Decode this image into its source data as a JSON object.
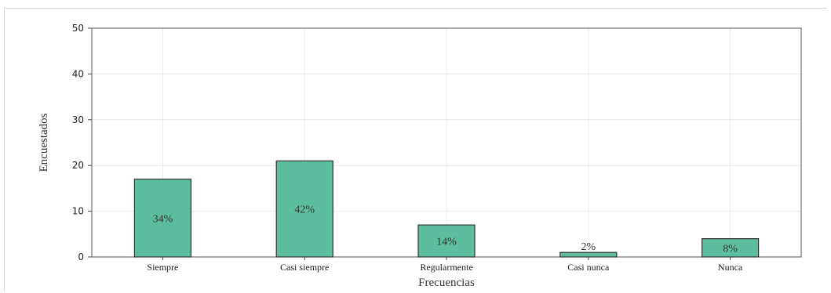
{
  "chart_data": {
    "type": "bar",
    "categories": [
      "Siempre",
      "Casi siempre",
      "Regularmente",
      "Casi nunca",
      "Nunca"
    ],
    "values": [
      17,
      21,
      7,
      1,
      4
    ],
    "data_labels": [
      "34%",
      "42%",
      "14%",
      "2%",
      "8%"
    ],
    "title": "",
    "xlabel": "Frecuencias",
    "ylabel": "Encuestados",
    "ylim": [
      0,
      50
    ],
    "yticks": [
      0,
      10,
      20,
      30,
      40,
      50
    ],
    "grid": true,
    "bar_color": "#5cbd9f",
    "bar_edge_color": "#333333"
  }
}
